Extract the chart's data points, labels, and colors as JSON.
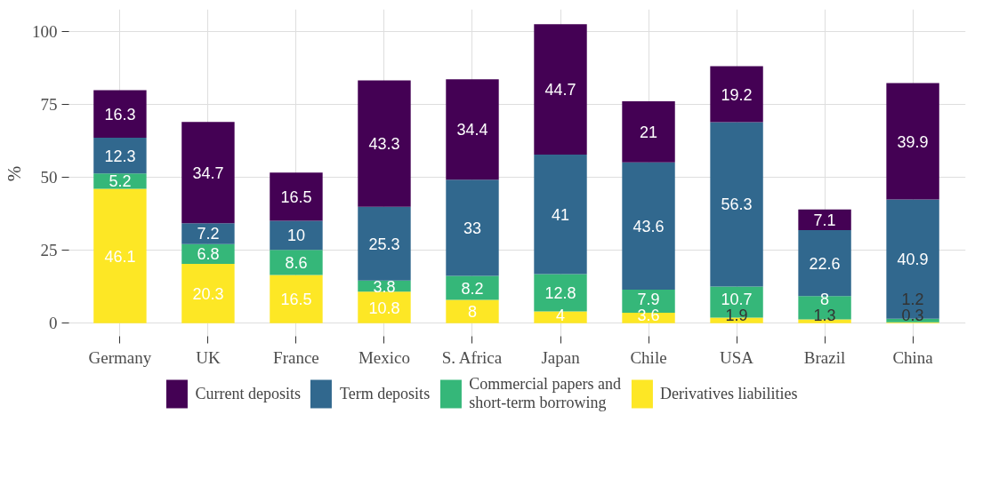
{
  "chart_data": {
    "type": "bar",
    "stacked": true,
    "ylabel": "%",
    "categories": [
      "Germany",
      "UK",
      "France",
      "Mexico",
      "S. Africa",
      "Japan",
      "Chile",
      "USA",
      "Brazil",
      "China"
    ],
    "series": [
      {
        "name": "Derivatives liabilities",
        "color": "#fde725",
        "values": [
          46.1,
          20.3,
          16.5,
          10.8,
          8,
          4,
          3.6,
          1.9,
          1.3,
          0.3
        ]
      },
      {
        "name": "Commercial papers and short-term borrowing",
        "color": "#35b779",
        "values": [
          5.2,
          6.8,
          8.6,
          3.8,
          8.2,
          12.8,
          7.9,
          10.7,
          8,
          1.2
        ]
      },
      {
        "name": "Term deposits",
        "color": "#31688e",
        "values": [
          12.3,
          7.2,
          10,
          25.3,
          33,
          41,
          43.6,
          56.3,
          22.6,
          40.9
        ]
      },
      {
        "name": "Current deposits",
        "color": "#440154",
        "values": [
          16.3,
          34.7,
          16.5,
          43.3,
          34.4,
          44.7,
          21,
          19.2,
          7.1,
          39.9
        ]
      }
    ],
    "ylim": [
      -5.1,
      107.6
    ],
    "yticks": [
      0,
      25,
      50,
      75,
      100
    ],
    "grid": true,
    "legend": "bottom",
    "data_labels": true
  }
}
